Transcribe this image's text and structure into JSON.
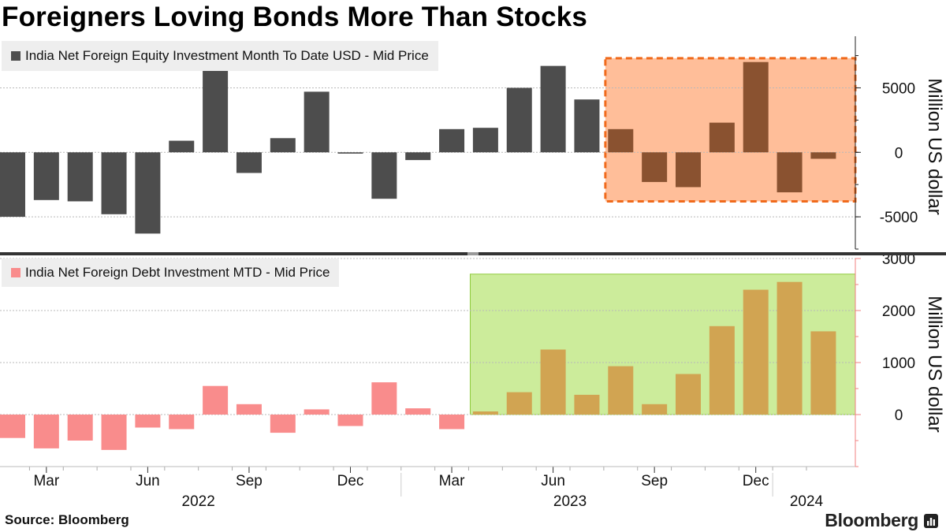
{
  "title": "Foreigners Loving Bonds More Than Stocks",
  "source": "Source: Bloomberg",
  "brand": "Bloomberg",
  "colors": {
    "equity": "#4d4d4d",
    "equity_highlight": "#8a5230",
    "equity_box_fill": "#ffbe99",
    "equity_box_border": "#f06a1c",
    "debt": "#f98c8c",
    "debt_highlight": "#d1a452",
    "debt_box_fill": "#ccec9b",
    "debt_box_border": "#8ecb3c",
    "grid": "#b9b9b9",
    "axis": "#222222",
    "debt_axis": "#f08080"
  },
  "chart_data": [
    {
      "type": "bar",
      "title": "India Net Foreign Equity Investment Month To Date USD - Mid Price",
      "legend": "India Net Foreign Equity Investment Month To Date USD - Mid Price",
      "ylabel": "Million US dollar",
      "ylim": [
        -7500,
        9000
      ],
      "yticks": [
        -5000,
        0,
        5000
      ],
      "ytick_labels": [
        "-5000",
        "0",
        "5000"
      ],
      "categories": [
        "2022-02",
        "2022-03",
        "2022-04",
        "2022-05",
        "2022-06",
        "2022-07",
        "2022-08",
        "2022-09",
        "2022-10",
        "2022-11",
        "2022-12",
        "2023-01",
        "2023-02",
        "2023-03",
        "2023-04",
        "2023-05",
        "2023-06",
        "2023-07",
        "2023-08",
        "2023-09",
        "2023-10",
        "2023-11",
        "2023-12",
        "2024-01",
        "2024-02"
      ],
      "values": [
        -5000,
        -3700,
        -3800,
        -4800,
        -6300,
        900,
        6800,
        -1600,
        1100,
        4700,
        -100,
        -3600,
        -600,
        1800,
        1900,
        5000,
        6700,
        4100,
        1800,
        -2300,
        -2700,
        2300,
        7000,
        -3100,
        -500
      ],
      "highlight_from_index": 18,
      "highlight_range": [
        -3800,
        7300
      ]
    },
    {
      "type": "bar",
      "title": "India Net Foreign Debt Investment MTD - Mid Price",
      "legend": "India Net Foreign Debt Investment MTD - Mid Price",
      "ylabel": "Million US dollar",
      "ylim": [
        -1000,
        3000
      ],
      "yticks": [
        0,
        1000,
        2000,
        3000
      ],
      "ytick_labels": [
        "0",
        "1000",
        "2000",
        "3000"
      ],
      "categories": [
        "2022-02",
        "2022-03",
        "2022-04",
        "2022-05",
        "2022-06",
        "2022-07",
        "2022-08",
        "2022-09",
        "2022-10",
        "2022-11",
        "2022-12",
        "2023-01",
        "2023-02",
        "2023-03",
        "2023-04",
        "2023-05",
        "2023-06",
        "2023-07",
        "2023-08",
        "2023-09",
        "2023-10",
        "2023-11",
        "2023-12",
        "2024-01",
        "2024-02"
      ],
      "values": [
        -450,
        -650,
        -500,
        -680,
        -250,
        -280,
        550,
        200,
        -350,
        100,
        -220,
        620,
        120,
        -280,
        60,
        430,
        1250,
        380,
        930,
        200,
        780,
        1700,
        2400,
        2550,
        1600
      ],
      "highlight_from_index": 14,
      "highlight_range": [
        0,
        2700
      ]
    }
  ],
  "x_axis": {
    "month_labels": [
      {
        "label": "Mar",
        "index": 1
      },
      {
        "label": "Jun",
        "index": 4
      },
      {
        "label": "Sep",
        "index": 7
      },
      {
        "label": "Dec",
        "index": 10
      },
      {
        "label": "Mar",
        "index": 13
      },
      {
        "label": "Jun",
        "index": 16
      },
      {
        "label": "Sep",
        "index": 19
      },
      {
        "label": "Dec",
        "index": 22
      }
    ],
    "year_labels": [
      {
        "label": "2022",
        "index": 5.5
      },
      {
        "label": "2023",
        "index": 16.5
      },
      {
        "label": "2024",
        "index": 23.5
      }
    ]
  }
}
